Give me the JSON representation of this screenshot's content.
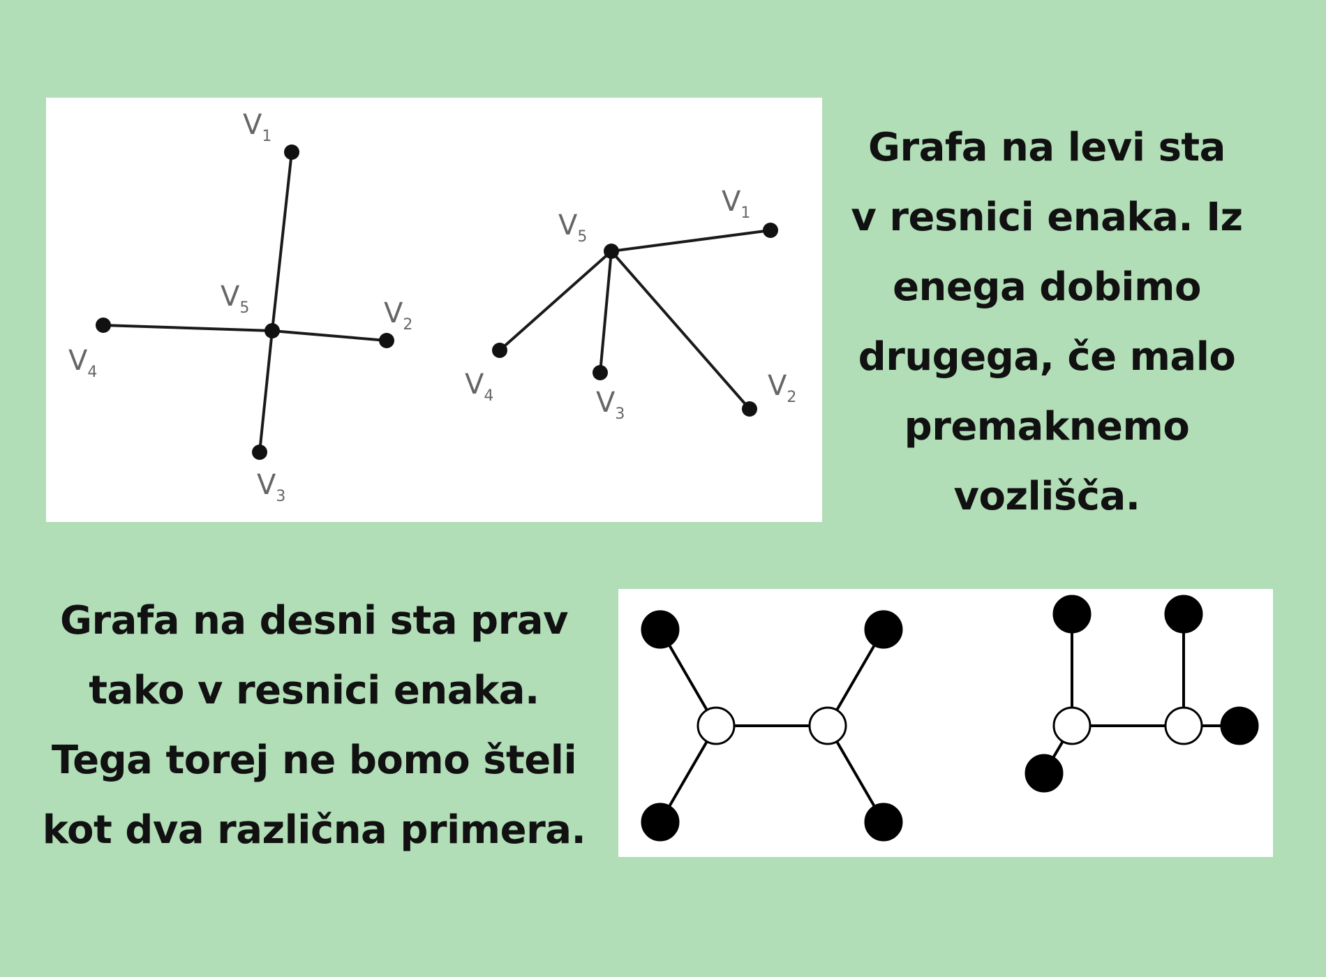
{
  "top_diagram": {
    "graph_a": {
      "vertices": [
        {
          "id": "v1",
          "label": "V",
          "sub": "1"
        },
        {
          "id": "v2",
          "label": "V",
          "sub": "2"
        },
        {
          "id": "v3",
          "label": "V",
          "sub": "3"
        },
        {
          "id": "v4",
          "label": "V",
          "sub": "4"
        },
        {
          "id": "v5",
          "label": "V",
          "sub": "5"
        }
      ]
    },
    "graph_b": {
      "vertices": [
        {
          "id": "v1",
          "label": "V",
          "sub": "1"
        },
        {
          "id": "v2",
          "label": "V",
          "sub": "2"
        },
        {
          "id": "v3",
          "label": "V",
          "sub": "3"
        },
        {
          "id": "v4",
          "label": "V",
          "sub": "4"
        },
        {
          "id": "v5",
          "label": "V",
          "sub": "5"
        }
      ]
    },
    "edges": [
      [
        "v5",
        "v1"
      ],
      [
        "v5",
        "v2"
      ],
      [
        "v5",
        "v3"
      ],
      [
        "v5",
        "v4"
      ]
    ]
  },
  "bottom_diagram": {
    "colors": {
      "filled": "#000000",
      "hollow": "#ffffff"
    }
  },
  "text_right": {
    "lines": [
      "Grafa na levi sta",
      "v resnici enaka. Iz",
      "enega dobimo",
      "drugega, če malo",
      "premaknemo",
      "vozlišča."
    ]
  },
  "text_left": {
    "lines": [
      "Grafa na desni sta prav",
      "tako v resnici enaka.",
      "Tega torej ne bomo šteli",
      "kot dva različna primera."
    ]
  }
}
